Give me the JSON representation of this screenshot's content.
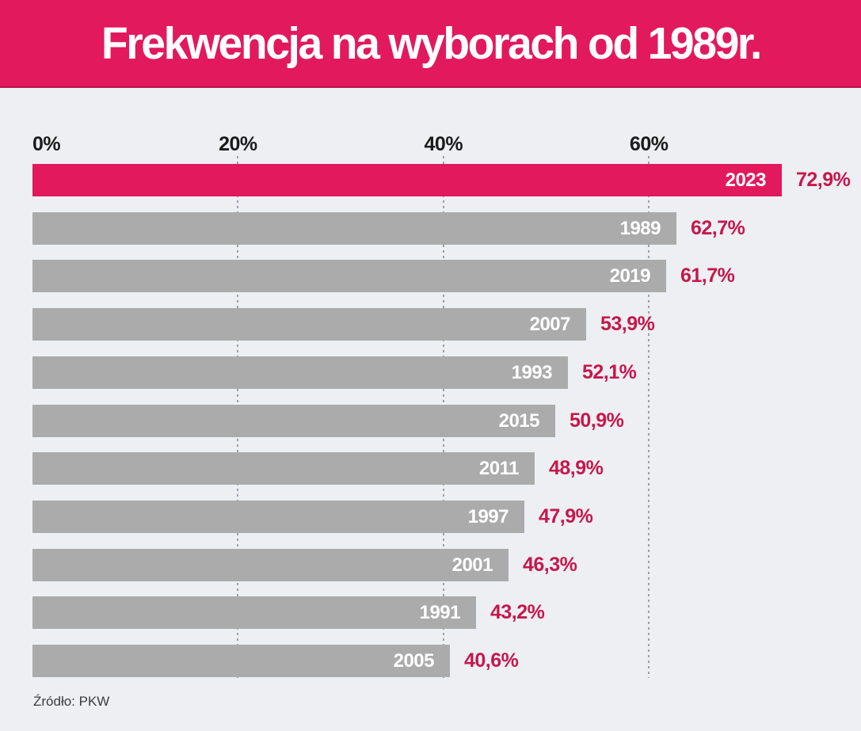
{
  "header": {
    "title": "Frekwencja na wyborach od 1989r."
  },
  "chart_data": {
    "type": "bar",
    "orientation": "horizontal",
    "title": "Frekwencja na wyborach od 1989r.",
    "categories": [
      "2023",
      "1989",
      "2019",
      "2007",
      "1993",
      "2015",
      "2011",
      "1997",
      "2001",
      "1991",
      "2005"
    ],
    "values": [
      72.9,
      62.7,
      61.7,
      53.9,
      52.1,
      50.9,
      48.9,
      47.9,
      46.3,
      43.2,
      40.6
    ],
    "value_labels": [
      "72,9%",
      "62,7%",
      "61,7%",
      "53,9%",
      "52,1%",
      "50,9%",
      "48,9%",
      "47,9%",
      "46,3%",
      "43,2%",
      "40,6%"
    ],
    "x_tick_labels": [
      "0%",
      "20%",
      "40%",
      "60%"
    ],
    "x_tick_values": [
      0,
      20,
      40,
      60
    ],
    "xlim": [
      0,
      80
    ],
    "grid": "dashed-vertical",
    "legend": "none",
    "highlight_index": 0,
    "colors": {
      "highlight_bar": "#e2195c",
      "default_bar": "#ababab",
      "value_label": "#c6174b",
      "header_background": "#e2195c",
      "page_background": "#edeff3",
      "tick_label": "#1b1b1b"
    }
  },
  "footer": {
    "source": "Źródło: PKW"
  }
}
